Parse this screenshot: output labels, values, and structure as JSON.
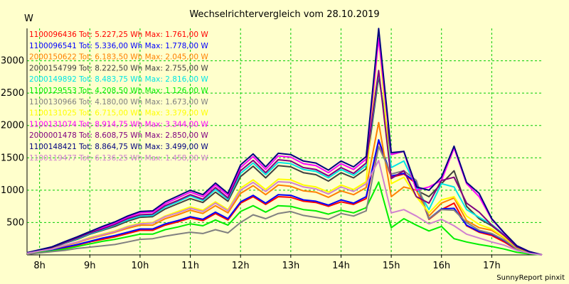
{
  "chart_data": {
    "type": "line",
    "title": "Wechselrichtervergleich vom 28.10.2019",
    "ylabel": "W",
    "footer": "SunnyReport pinxit",
    "background": "#ffffcc",
    "grid_color": "#00cc00",
    "grid": true,
    "legend_position": "top-left",
    "x_time": [
      "07:15",
      "07:30",
      "07:45",
      "08:00",
      "08:15",
      "08:30",
      "08:45",
      "09:00",
      "09:15",
      "09:30",
      "09:45",
      "10:00",
      "10:15",
      "10:30",
      "10:45",
      "11:00",
      "11:15",
      "11:30",
      "11:45",
      "12:00",
      "12:15",
      "12:30",
      "12:45",
      "13:00",
      "13:15",
      "13:30",
      "13:45",
      "14:00",
      "14:15",
      "14:30",
      "14:45",
      "15:00",
      "15:15",
      "15:30",
      "15:45",
      "16:00",
      "16:15",
      "16:30",
      "16:45",
      "17:00",
      "17:15",
      "17:30",
      "17:45",
      "18:00"
    ],
    "xticks": [
      "8h",
      "9h",
      "10h",
      "11h",
      "12h",
      "13h",
      "14h",
      "15h",
      "16h",
      "17h"
    ],
    "yticks": [
      500,
      1000,
      1500,
      2000,
      2500,
      3000
    ],
    "xlim": [
      "07:45",
      "18:00"
    ],
    "ylim": [
      0,
      3500
    ],
    "series": [
      {
        "id": "1100096436",
        "tot": "5.227,25 Wh",
        "max": "1.761,00 W",
        "legend": "1100096436 Tot: 5.227,25 Wh Max: 1.761,00 W",
        "color": "#ff0000",
        "values": [
          0,
          0,
          20,
          50,
          70,
          110,
          150,
          200,
          240,
          280,
          330,
          380,
          380,
          460,
          510,
          570,
          530,
          640,
          540,
          800,
          900,
          780,
          900,
          890,
          830,
          810,
          750,
          820,
          780,
          870,
          1761,
          1200,
          1250,
          1100,
          550,
          700,
          800,
          450,
          350,
          300,
          200,
          80,
          30,
          0
        ]
      },
      {
        "id": "1100096541",
        "tot": "5.336,00 Wh",
        "max": "1.778,00 W",
        "legend": "1100096541 Tot: 5.336,00 Wh Max: 1.778,00 W",
        "color": "#0000ff",
        "values": [
          0,
          0,
          20,
          50,
          80,
          120,
          160,
          210,
          260,
          300,
          350,
          400,
          400,
          480,
          530,
          590,
          550,
          660,
          560,
          820,
          920,
          800,
          930,
          920,
          850,
          830,
          770,
          850,
          800,
          900,
          1778,
          1220,
          1260,
          1120,
          560,
          710,
          720,
          460,
          360,
          320,
          220,
          90,
          35,
          0
        ]
      },
      {
        "id": "2000150622",
        "tot": "6.183,50 Wh",
        "max": "2.045,00 W",
        "legend": "2000150622 Tot: 6.183,50 Wh Max: 2.045,00 W",
        "color": "#ff8000",
        "values": [
          0,
          0,
          25,
          60,
          90,
          140,
          190,
          250,
          300,
          350,
          410,
          460,
          460,
          560,
          620,
          690,
          640,
          760,
          650,
          950,
          1070,
          930,
          1080,
          1060,
          990,
          970,
          890,
          990,
          930,
          1040,
          2045,
          900,
          1050,
          1000,
          600,
          800,
          880,
          530,
          420,
          380,
          260,
          110,
          40,
          0
        ]
      },
      {
        "id": "2000154799",
        "tot": "8.222,50 Wh",
        "max": "2.755,00 W",
        "legend": "2000154799 Tot: 8.222,50 Wh Max: 2.755,00 W",
        "color": "#404040",
        "values": [
          0,
          0,
          30,
          70,
          110,
          180,
          240,
          320,
          380,
          440,
          520,
          580,
          590,
          710,
          790,
          870,
          810,
          970,
          830,
          1210,
          1370,
          1190,
          1380,
          1360,
          1270,
          1240,
          1140,
          1270,
          1190,
          1330,
          2755,
          1550,
          1600,
          1000,
          900,
          1100,
          1300,
          750,
          560,
          450,
          300,
          120,
          45,
          0
        ]
      },
      {
        "id": "2000149892",
        "tot": "8.483,75 Wh",
        "max": "2.816,00 W",
        "legend": "2000149892 Tot: 8.483,75 Wh Max: 2.816,00 W",
        "color": "#00e5e5",
        "values": [
          0,
          0,
          30,
          75,
          115,
          185,
          250,
          330,
          390,
          460,
          540,
          600,
          610,
          740,
          820,
          910,
          840,
          1010,
          860,
          1260,
          1420,
          1240,
          1430,
          1410,
          1320,
          1290,
          1190,
          1320,
          1230,
          1380,
          2816,
          1350,
          1450,
          1050,
          700,
          1100,
          1050,
          700,
          580,
          470,
          310,
          125,
          45,
          0
        ]
      },
      {
        "id": "1100129553",
        "tot": "4.208,50 Wh",
        "max": "1.126,00 W",
        "legend": "1100129553 Tot: 4.208,50 Wh Max: 1.126,00 W",
        "color": "#00ee00",
        "values": [
          0,
          0,
          15,
          40,
          60,
          90,
          130,
          170,
          210,
          240,
          280,
          320,
          320,
          390,
          430,
          480,
          450,
          540,
          460,
          670,
          760,
          660,
          760,
          750,
          700,
          680,
          630,
          690,
          650,
          730,
          1126,
          420,
          560,
          460,
          370,
          440,
          250,
          200,
          160,
          130,
          90,
          40,
          15,
          0
        ]
      },
      {
        "id": "1100130966",
        "tot": "4.180,00 Wh",
        "max": "1.673,00 W",
        "legend": "1100130966 Tot: 4.180,00 Wh Max: 1.673,00 W",
        "color": "#808080",
        "values": [
          0,
          0,
          10,
          30,
          50,
          70,
          100,
          120,
          140,
          160,
          200,
          240,
          250,
          290,
          320,
          350,
          330,
          390,
          340,
          500,
          620,
          560,
          640,
          670,
          610,
          580,
          550,
          640,
          600,
          680,
          1673,
          1250,
          1300,
          1150,
          560,
          700,
          690,
          500,
          380,
          330,
          230,
          90,
          35,
          0
        ]
      },
      {
        "id": "1100131025",
        "tot": "6.715,00 Wh",
        "max": "3.379,00 W",
        "legend": "1100131025 Tot: 6.715,00 Wh Max: 3.379,00 W",
        "color": "#ffff00",
        "values": [
          0,
          0,
          25,
          60,
          95,
          150,
          200,
          270,
          320,
          370,
          440,
          490,
          500,
          600,
          670,
          740,
          690,
          820,
          700,
          1030,
          1160,
          1010,
          1170,
          1160,
          1080,
          1050,
          970,
          1080,
          1010,
          1130,
          3379,
          1100,
          1200,
          900,
          650,
          850,
          900,
          600,
          470,
          400,
          270,
          110,
          40,
          0
        ]
      },
      {
        "id": "1100131074",
        "tot": "8.914,75 Wh",
        "max": "3.344,00 W",
        "legend": "1100131074 Tot: 8.914,75 Wh Max: 3.344,00 W",
        "color": "#ff00ff",
        "values": [
          0,
          0,
          30,
          70,
          120,
          200,
          270,
          350,
          420,
          490,
          580,
          650,
          660,
          790,
          880,
          970,
          900,
          1080,
          920,
          1350,
          1520,
          1320,
          1530,
          1510,
          1410,
          1380,
          1270,
          1410,
          1320,
          1480,
          3344,
          1550,
          1600,
          1000,
          1050,
          1150,
          1650,
          1100,
          900,
          550,
          330,
          140,
          50,
          0
        ]
      },
      {
        "id": "2000001478",
        "tot": "8.608,75 Wh",
        "max": "2.850,00 W",
        "legend": "2000001478 Tot: 8.608,75 Wh Max: 2.850,00 W",
        "color": "#800080",
        "values": [
          0,
          0,
          30,
          75,
          115,
          190,
          260,
          340,
          400,
          470,
          560,
          620,
          630,
          760,
          840,
          930,
          860,
          1040,
          880,
          1300,
          1460,
          1270,
          1470,
          1450,
          1350,
          1320,
          1220,
          1350,
          1260,
          1420,
          2850,
          1180,
          1300,
          900,
          800,
          1150,
          1200,
          800,
          660,
          460,
          300,
          120,
          45,
          0
        ]
      },
      {
        "id": "1100148421",
        "tot": "8.864,75 Wh",
        "max": "3.499,00 W",
        "legend": "1100148421 Tot: 8.864,75 Wh Max: 3.499,00 W",
        "color": "#000080",
        "values": [
          0,
          0,
          35,
          80,
          125,
          205,
          280,
          360,
          440,
          510,
          600,
          670,
          680,
          820,
          910,
          1000,
          930,
          1110,
          950,
          1390,
          1560,
          1360,
          1570,
          1550,
          1450,
          1420,
          1310,
          1450,
          1360,
          1520,
          3499,
          1580,
          1600,
          1050,
          1000,
          1200,
          1680,
          1120,
          950,
          560,
          340,
          140,
          50,
          0
        ]
      },
      {
        "id": "1100119477",
        "tot": "6.136,25 Wh",
        "max": "1.458,00 W",
        "legend": "1100119477 Tot: 6.136,25 Wh Max: 1.458,00 W",
        "color": "#d080d0",
        "values": [
          0,
          0,
          25,
          60,
          90,
          150,
          200,
          260,
          310,
          360,
          430,
          480,
          490,
          590,
          650,
          720,
          670,
          800,
          680,
          1000,
          1120,
          980,
          1130,
          1120,
          1050,
          1020,
          940,
          1050,
          980,
          1100,
          1458,
          650,
          700,
          600,
          480,
          550,
          450,
          320,
          260,
          200,
          150,
          70,
          25,
          0
        ]
      }
    ]
  }
}
